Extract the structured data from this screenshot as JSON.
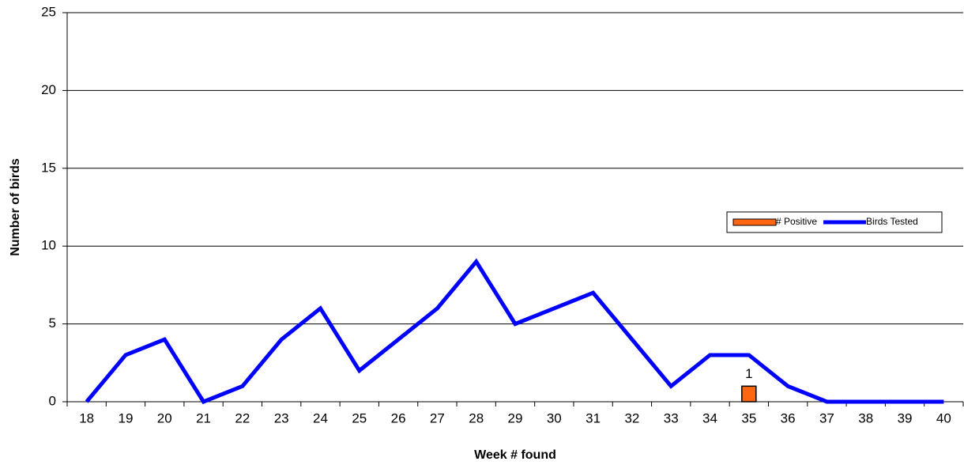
{
  "chart_data": {
    "type": "combo",
    "x_label": "Week # found",
    "y_label": "Number of birds",
    "categories": [
      "18",
      "19",
      "20",
      "21",
      "22",
      "23",
      "24",
      "25",
      "26",
      "27",
      "28",
      "29",
      "30",
      "31",
      "32",
      "33",
      "34",
      "35",
      "36",
      "37",
      "38",
      "39",
      "40"
    ],
    "series": [
      {
        "name": "# Positive",
        "type": "bar",
        "color": "#ff6611",
        "values": [
          null,
          null,
          null,
          null,
          null,
          null,
          null,
          null,
          null,
          null,
          null,
          null,
          null,
          null,
          null,
          null,
          null,
          1,
          null,
          null,
          null,
          null,
          null
        ]
      },
      {
        "name": "Birds Tested",
        "type": "line",
        "color": "#0000ff",
        "values": [
          0,
          3,
          4,
          0,
          1,
          4,
          6,
          2,
          4,
          6,
          9,
          5,
          6,
          7,
          4,
          1,
          3,
          3,
          1,
          0,
          0,
          0,
          0
        ]
      }
    ],
    "ylim": [
      0,
      25
    ],
    "yticks": [
      0,
      5,
      10,
      15,
      20,
      25
    ],
    "grid": true,
    "legend": "right"
  }
}
